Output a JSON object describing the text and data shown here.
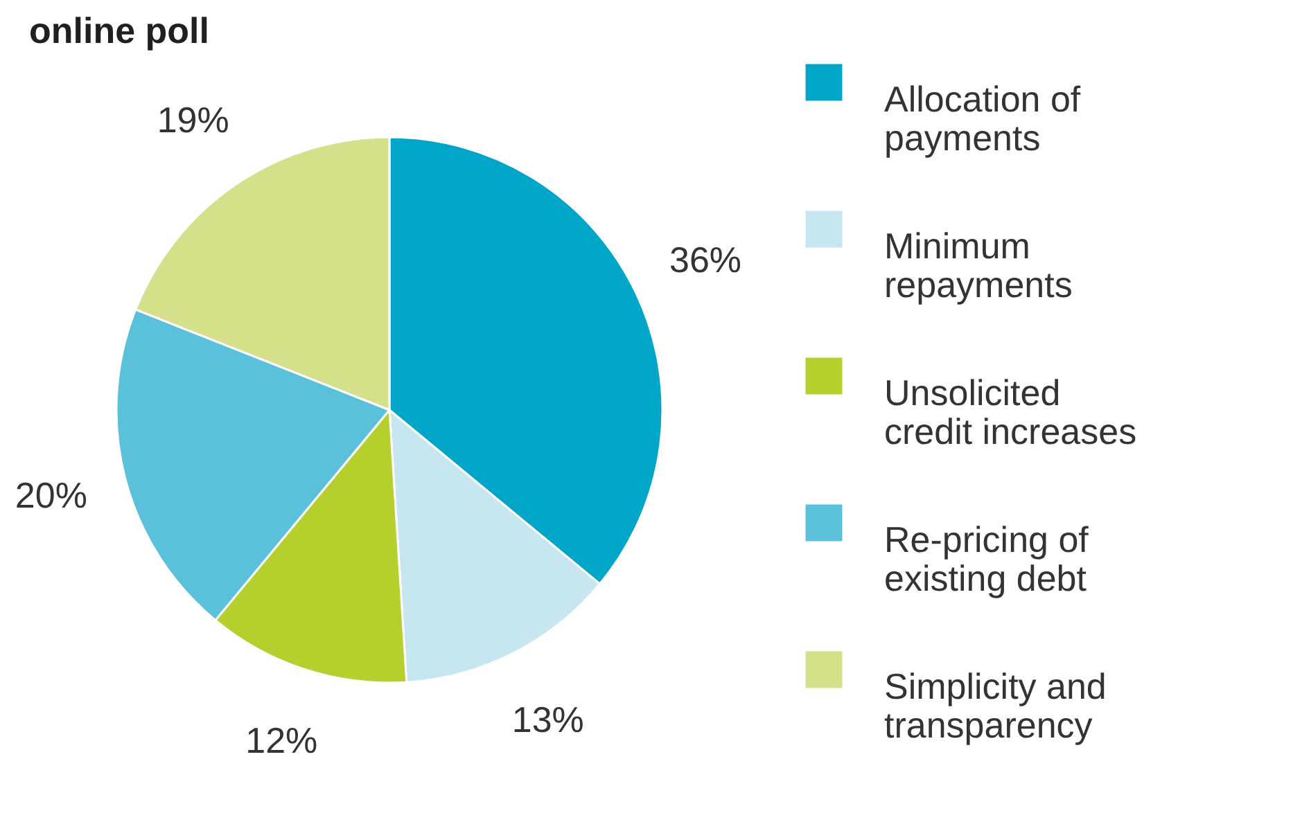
{
  "chart_data": {
    "type": "pie",
    "title": "online poll",
    "categories": [
      "Allocation of payments",
      "Minimum repayments",
      "Unsolicited credit increases",
      "Re-pricing of existing debt",
      "Simplicity and transparency"
    ],
    "values": [
      36,
      13,
      12,
      20,
      19
    ],
    "colors": [
      "#00a5c8",
      "#c6e7f0",
      "#b5cf2c",
      "#5bc0da",
      "#d4e08a"
    ],
    "value_labels": [
      "36%",
      "13%",
      "12%",
      "20%",
      "19%"
    ],
    "legend": "right"
  }
}
